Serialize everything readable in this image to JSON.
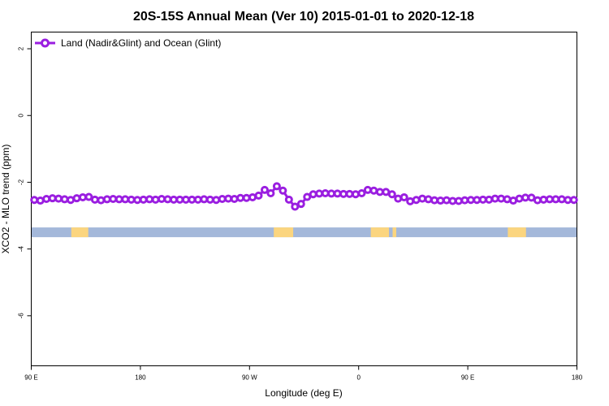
{
  "chart_data": {
    "type": "line",
    "title": "20S-15S Annual Mean (Ver 10)   2015-01-01 to 2020-12-18",
    "xlabel": "Longitude (deg E)",
    "ylabel": "XCO2 - MLO trend (ppm)",
    "x_ticks": [
      {
        "value": 90,
        "label": "90 E"
      },
      {
        "value": 180,
        "label": "180"
      },
      {
        "value": 270,
        "label": "90 W"
      },
      {
        "value": 360,
        "label": "0"
      },
      {
        "value": 450,
        "label": "90 E"
      },
      {
        "value": 540,
        "label": "180"
      }
    ],
    "y_ticks": [
      {
        "value": 2,
        "label": "2"
      },
      {
        "value": 0,
        "label": "0"
      },
      {
        "value": -2,
        "label": "-2"
      },
      {
        "value": -4,
        "label": "-4"
      },
      {
        "value": -6,
        "label": "-6"
      }
    ],
    "xlim": [
      90,
      540
    ],
    "ylim": [
      -7.5,
      2.5
    ],
    "legend_position": "top-left",
    "series": [
      {
        "name": "Land (Nadir&Glint) and Ocean (Glint)",
        "color": "#9a1ee0",
        "x": [
          92.5,
          97.5,
          102.5,
          107.5,
          112.5,
          117.5,
          122.5,
          127.5,
          132.5,
          137.5,
          142.5,
          147.5,
          152.5,
          157.5,
          162.5,
          167.5,
          172.5,
          177.5,
          182.5,
          187.5,
          192.5,
          197.5,
          202.5,
          207.5,
          212.5,
          217.5,
          222.5,
          227.5,
          232.5,
          237.5,
          242.5,
          247.5,
          252.5,
          257.5,
          262.5,
          267.5,
          272.5,
          277.5,
          282.5,
          287.5,
          292.5,
          297.5,
          302.5,
          307.5,
          312.5,
          317.5,
          322.5,
          327.5,
          332.5,
          337.5,
          342.5,
          347.5,
          352.5,
          357.5,
          362.5,
          367.5,
          372.5,
          377.5,
          382.5,
          387.5,
          392.5,
          397.5,
          402.5,
          407.5,
          412.5,
          417.5,
          422.5,
          427.5,
          432.5,
          437.5,
          442.5,
          447.5,
          452.5,
          457.5,
          462.5,
          467.5,
          472.5,
          477.5,
          482.5,
          487.5,
          492.5,
          497.5,
          502.5,
          507.5,
          512.5,
          517.5,
          522.5,
          527.5,
          532.5,
          537.5
        ],
        "y": [
          -2.53,
          -2.55,
          -2.5,
          -2.48,
          -2.49,
          -2.51,
          -2.53,
          -2.48,
          -2.45,
          -2.44,
          -2.52,
          -2.54,
          -2.51,
          -2.5,
          -2.51,
          -2.51,
          -2.52,
          -2.53,
          -2.52,
          -2.51,
          -2.52,
          -2.5,
          -2.51,
          -2.52,
          -2.52,
          -2.52,
          -2.52,
          -2.52,
          -2.51,
          -2.52,
          -2.53,
          -2.5,
          -2.49,
          -2.5,
          -2.47,
          -2.47,
          -2.45,
          -2.4,
          -2.23,
          -2.33,
          -2.12,
          -2.25,
          -2.52,
          -2.73,
          -2.65,
          -2.44,
          -2.36,
          -2.34,
          -2.33,
          -2.34,
          -2.34,
          -2.35,
          -2.35,
          -2.36,
          -2.33,
          -2.23,
          -2.25,
          -2.29,
          -2.29,
          -2.36,
          -2.49,
          -2.45,
          -2.57,
          -2.53,
          -2.49,
          -2.51,
          -2.54,
          -2.55,
          -2.54,
          -2.56,
          -2.56,
          -2.54,
          -2.53,
          -2.53,
          -2.52,
          -2.52,
          -2.49,
          -2.49,
          -2.51,
          -2.55,
          -2.49,
          -2.46,
          -2.46,
          -2.54,
          -2.52,
          -2.51,
          -2.51,
          -2.51,
          -2.53,
          -2.53
        ]
      }
    ],
    "surface_strip": {
      "y": -3.5,
      "ocean_color": "#a4b8da",
      "land_color": "#fbd57f",
      "land_ranges": [
        [
          123,
          137
        ],
        [
          290,
          306
        ],
        [
          370,
          385
        ],
        [
          388,
          391
        ],
        [
          483,
          498
        ]
      ]
    }
  }
}
